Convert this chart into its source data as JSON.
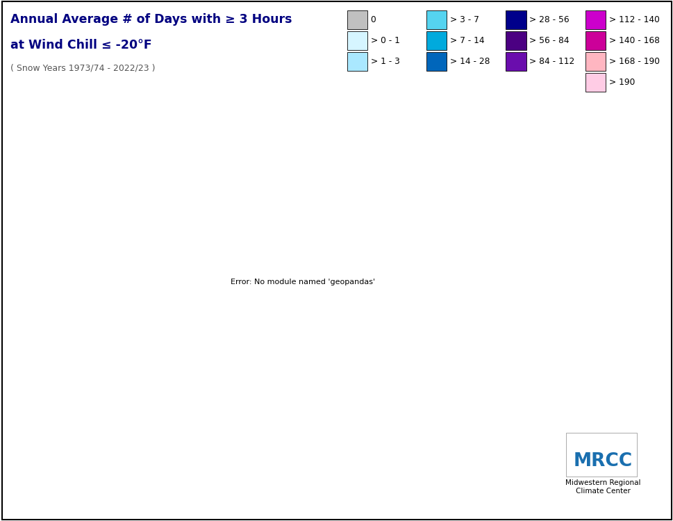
{
  "title_line1": "Annual Average # of Days with ≥ 3 Hours",
  "title_line2": "at Wind Chill ≤ -20°F",
  "subtitle": "( Snow Years 1973/74 - 2022/23 )",
  "background_color": "#ffffff",
  "legend_labels": [
    "0",
    "> 0 - 1",
    "> 1 - 3",
    "> 3 - 7",
    "> 7 - 14",
    "> 14 - 28",
    "> 28 - 56",
    "> 56 - 84",
    "> 84 - 112",
    "> 112 - 140",
    "> 140 - 168",
    "> 168 - 190",
    "> 190"
  ],
  "legend_colors": [
    "#c0c0c0",
    "#d6f5ff",
    "#aae8ff",
    "#55d4f0",
    "#00aadd",
    "#0066bb",
    "#00008b",
    "#4b0082",
    "#6a0dad",
    "#cc00cc",
    "#cc0099",
    "#ffb6c1",
    "#ffcce5"
  ],
  "contour_levels": [
    0.01,
    0.5,
    1,
    3,
    7,
    14,
    28,
    56,
    84,
    112,
    140,
    168,
    190,
    300
  ],
  "contour_colors": [
    "#c0c0c0",
    "#d6f5ff",
    "#aae8ff",
    "#55d4f0",
    "#00aadd",
    "#0066bb",
    "#00008b",
    "#4b0082",
    "#6a0dad",
    "#cc00cc",
    "#cc0099",
    "#ffb6c1",
    "#ffcce5"
  ],
  "figsize": [
    9.7,
    7.5
  ],
  "dpi": 100
}
